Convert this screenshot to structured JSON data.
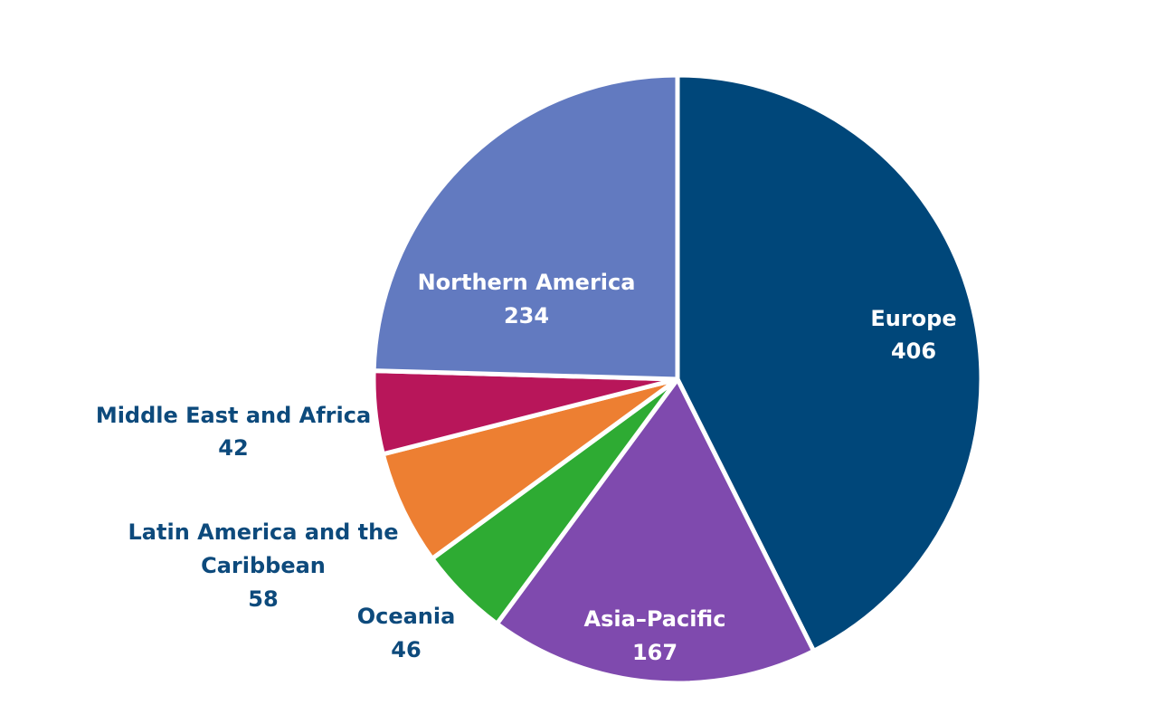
{
  "chart_data": {
    "type": "pie",
    "slices": [
      {
        "label": "Europe",
        "value": 406,
        "color": "#00477a"
      },
      {
        "label": "Asia–Pacific",
        "value": 167,
        "color": "#7f4aae"
      },
      {
        "label": "Oceania",
        "value": 46,
        "color": "#2eab33"
      },
      {
        "label": "Latin America and the Caribbean",
        "value": 58,
        "color": "#ed7f32"
      },
      {
        "label": "Middle East and Africa",
        "value": 42,
        "color": "#b8165a"
      },
      {
        "label": "Northern America",
        "value": 234,
        "color": "#627ac0"
      }
    ],
    "label_text_color": "#0d4a7c",
    "inside_label_color": "#ffffff"
  }
}
